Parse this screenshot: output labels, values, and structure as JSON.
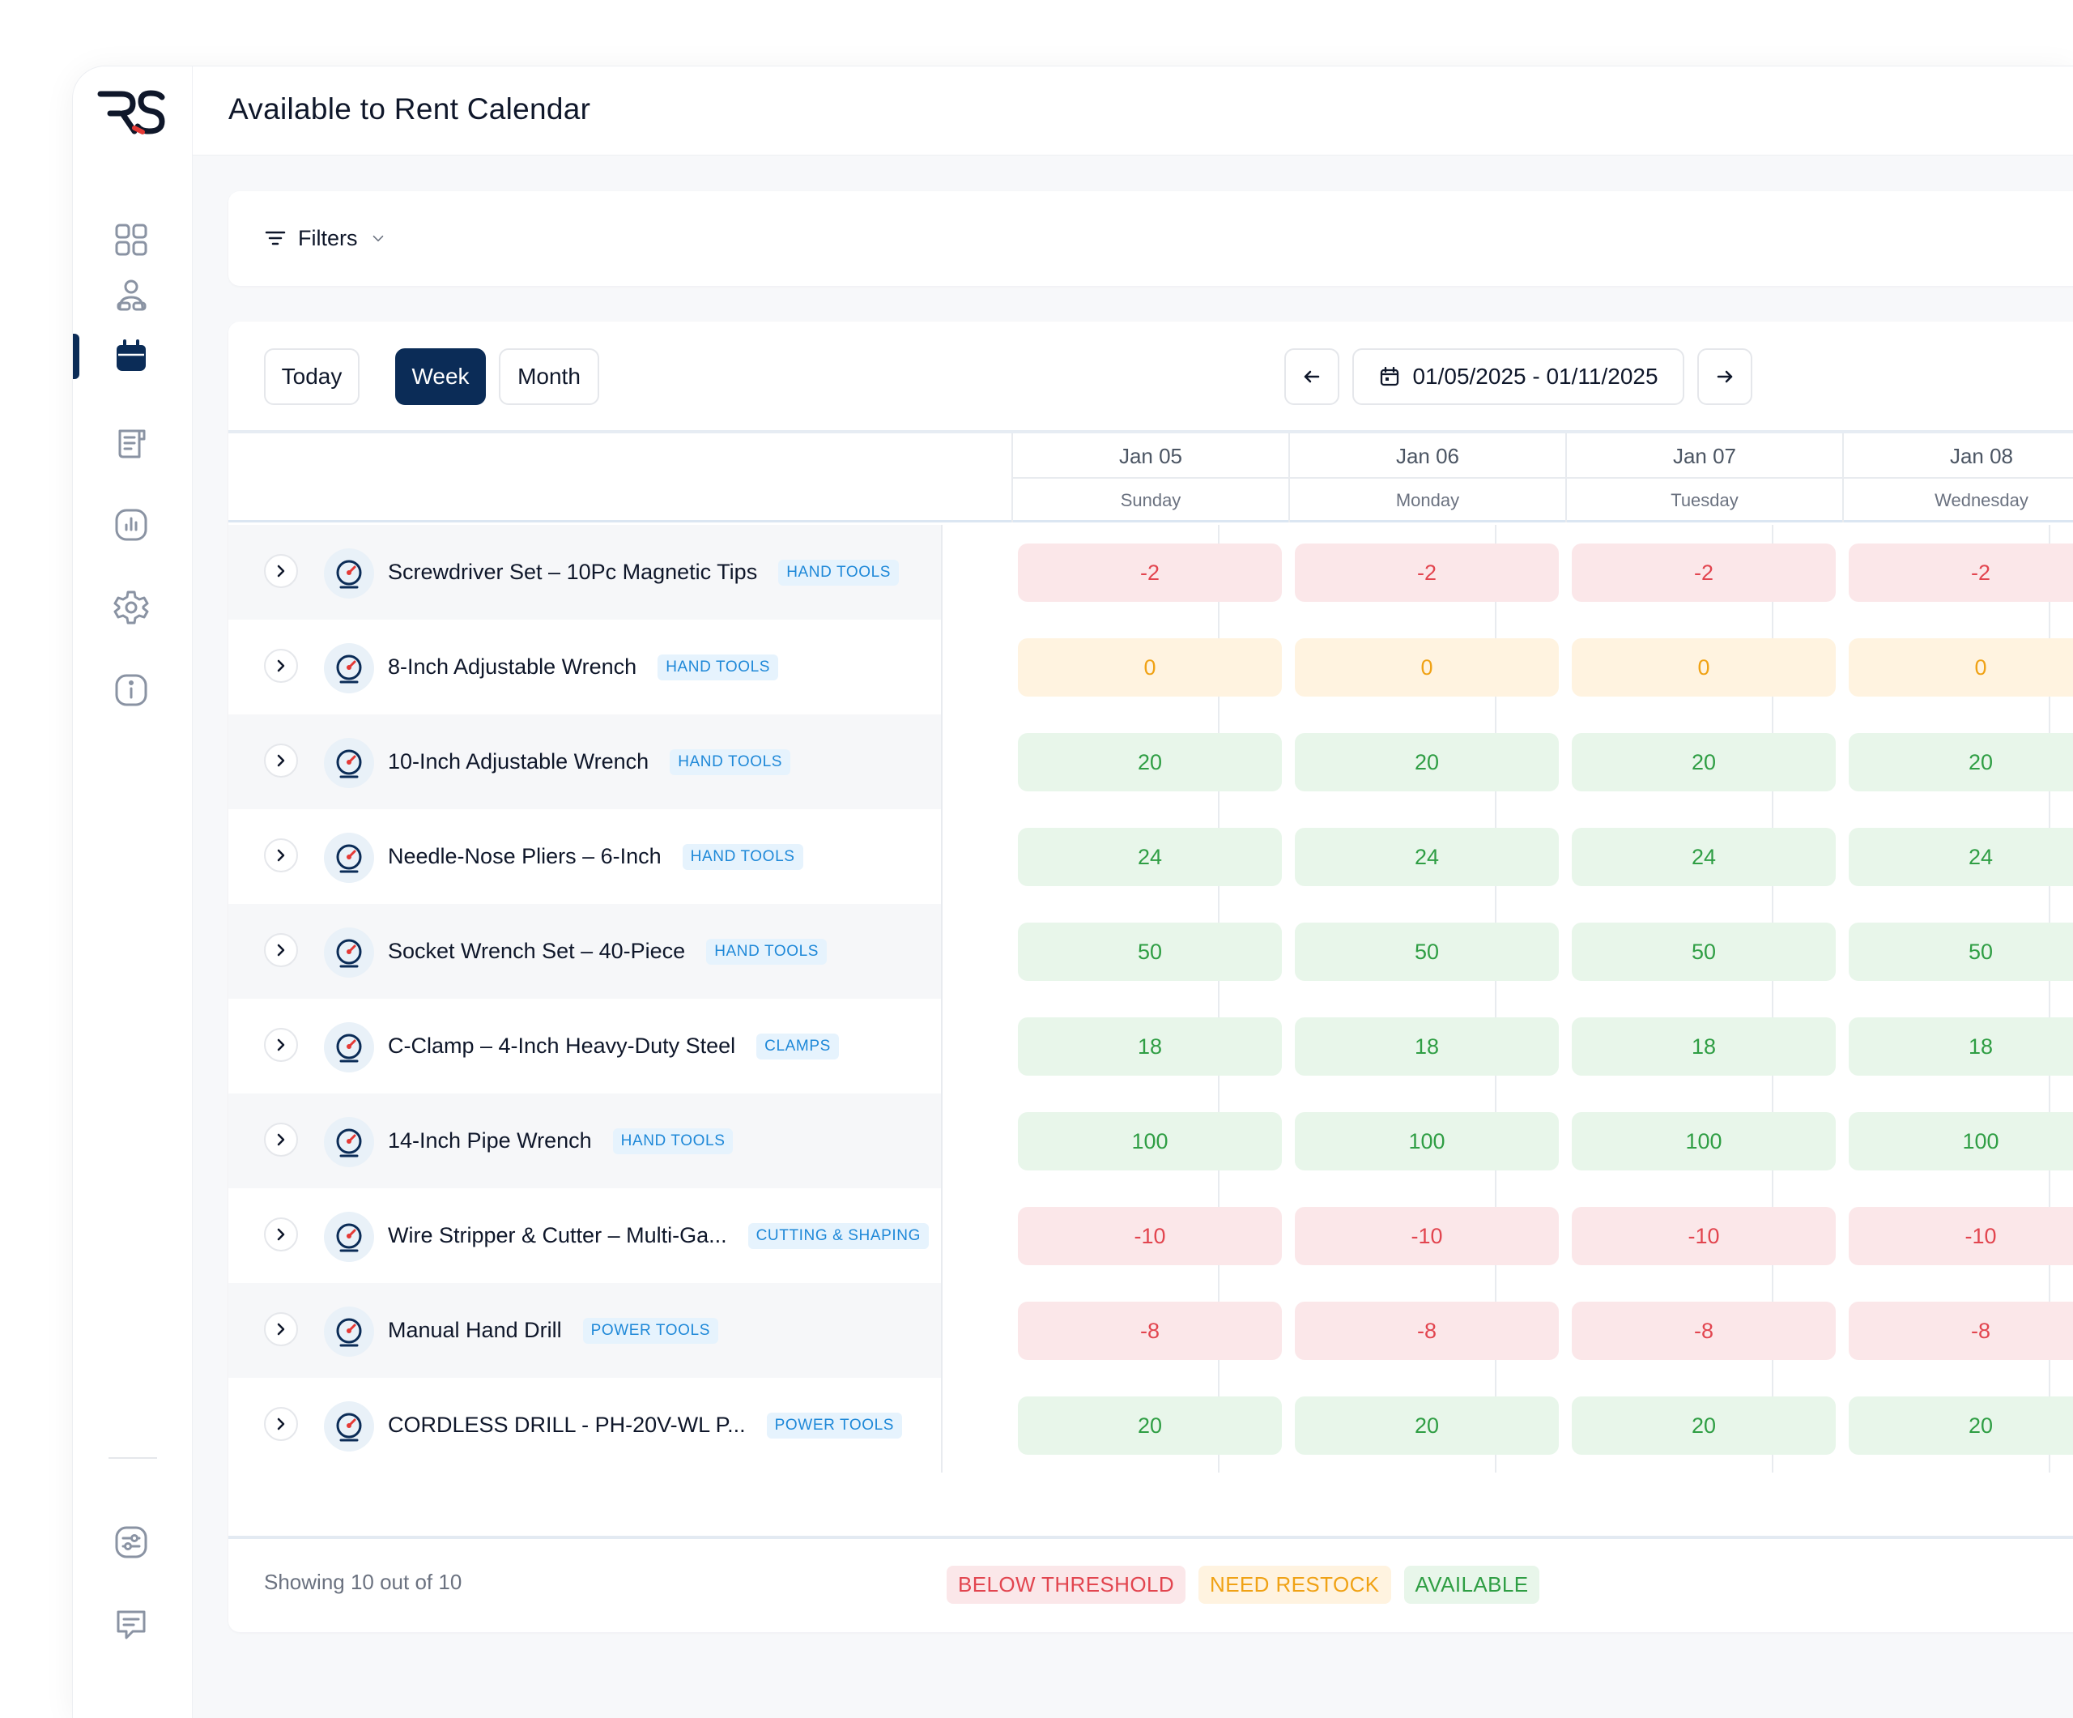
{
  "header": {
    "title": "Available to Rent Calendar"
  },
  "sidebar": {
    "logo_text": "RS",
    "items": [
      {
        "icon": "dashboard-grid-icon"
      },
      {
        "icon": "users-icon"
      },
      {
        "icon": "calendar-icon",
        "active": true
      },
      {
        "icon": "orders-document-icon"
      },
      {
        "icon": "reports-chart-icon"
      },
      {
        "icon": "settings-gear-icon"
      },
      {
        "icon": "info-icon"
      }
    ],
    "bottom_items": [
      {
        "icon": "preferences-sliders-icon"
      },
      {
        "icon": "chat-message-icon"
      }
    ]
  },
  "filters": {
    "label": "Filters"
  },
  "toolbar": {
    "today_label": "Today",
    "week_label": "Week",
    "month_label": "Month",
    "active_view": "Week",
    "date_range": "01/05/2025 - 01/11/2025"
  },
  "days": [
    {
      "date": "Jan 05",
      "dow": "Sunday"
    },
    {
      "date": "Jan 06",
      "dow": "Monday"
    },
    {
      "date": "Jan 07",
      "dow": "Tuesday"
    },
    {
      "date": "Jan 08",
      "dow": "Wednesday"
    }
  ],
  "products": [
    {
      "name": "Screwdriver Set – 10Pc Magnetic Tips",
      "category": "HAND TOOLS",
      "values": [
        "-2",
        "-2",
        "-2",
        "-2"
      ],
      "status": "red"
    },
    {
      "name": "8-Inch Adjustable Wrench",
      "category": "HAND TOOLS",
      "values": [
        "0",
        "0",
        "0",
        "0"
      ],
      "status": "orange"
    },
    {
      "name": "10-Inch Adjustable Wrench",
      "category": "HAND TOOLS",
      "values": [
        "20",
        "20",
        "20",
        "20"
      ],
      "status": "green"
    },
    {
      "name": "Needle-Nose Pliers – 6-Inch",
      "category": "HAND TOOLS",
      "values": [
        "24",
        "24",
        "24",
        "24"
      ],
      "status": "green"
    },
    {
      "name": "Socket Wrench Set – 40-Piece",
      "category": "HAND TOOLS",
      "values": [
        "50",
        "50",
        "50",
        "50"
      ],
      "status": "green"
    },
    {
      "name": "C-Clamp – 4-Inch Heavy-Duty Steel",
      "category": "CLAMPS",
      "values": [
        "18",
        "18",
        "18",
        "18"
      ],
      "status": "green"
    },
    {
      "name": "14-Inch Pipe Wrench",
      "category": "HAND TOOLS",
      "values": [
        "100",
        "100",
        "100",
        "100"
      ],
      "status": "green"
    },
    {
      "name": "Wire Stripper & Cutter – Multi-Ga...",
      "category": "CUTTING & SHAPING",
      "values": [
        "-10",
        "-10",
        "-10",
        "-10"
      ],
      "status": "red"
    },
    {
      "name": "Manual Hand Drill",
      "category": "POWER TOOLS",
      "values": [
        "-8",
        "-8",
        "-8",
        "-8"
      ],
      "status": "red"
    },
    {
      "name": "CORDLESS DRILL - PH-20V-WL P...",
      "category": "POWER TOOLS",
      "values": [
        "20",
        "20",
        "20",
        "20"
      ],
      "status": "green"
    }
  ],
  "footer": {
    "showing": "Showing 10 out of 10",
    "legend": {
      "below_threshold": "BELOW THRESHOLD",
      "need_restock": "NEED RESTOCK",
      "available": "AVAILABLE"
    }
  },
  "colors": {
    "brand": "#0b2c57",
    "logo_accent": "#e53935",
    "red_text": "#e2454f",
    "orange_text": "#f0a215",
    "green_text": "#2f9e44",
    "badge_text": "#1e88d8"
  }
}
